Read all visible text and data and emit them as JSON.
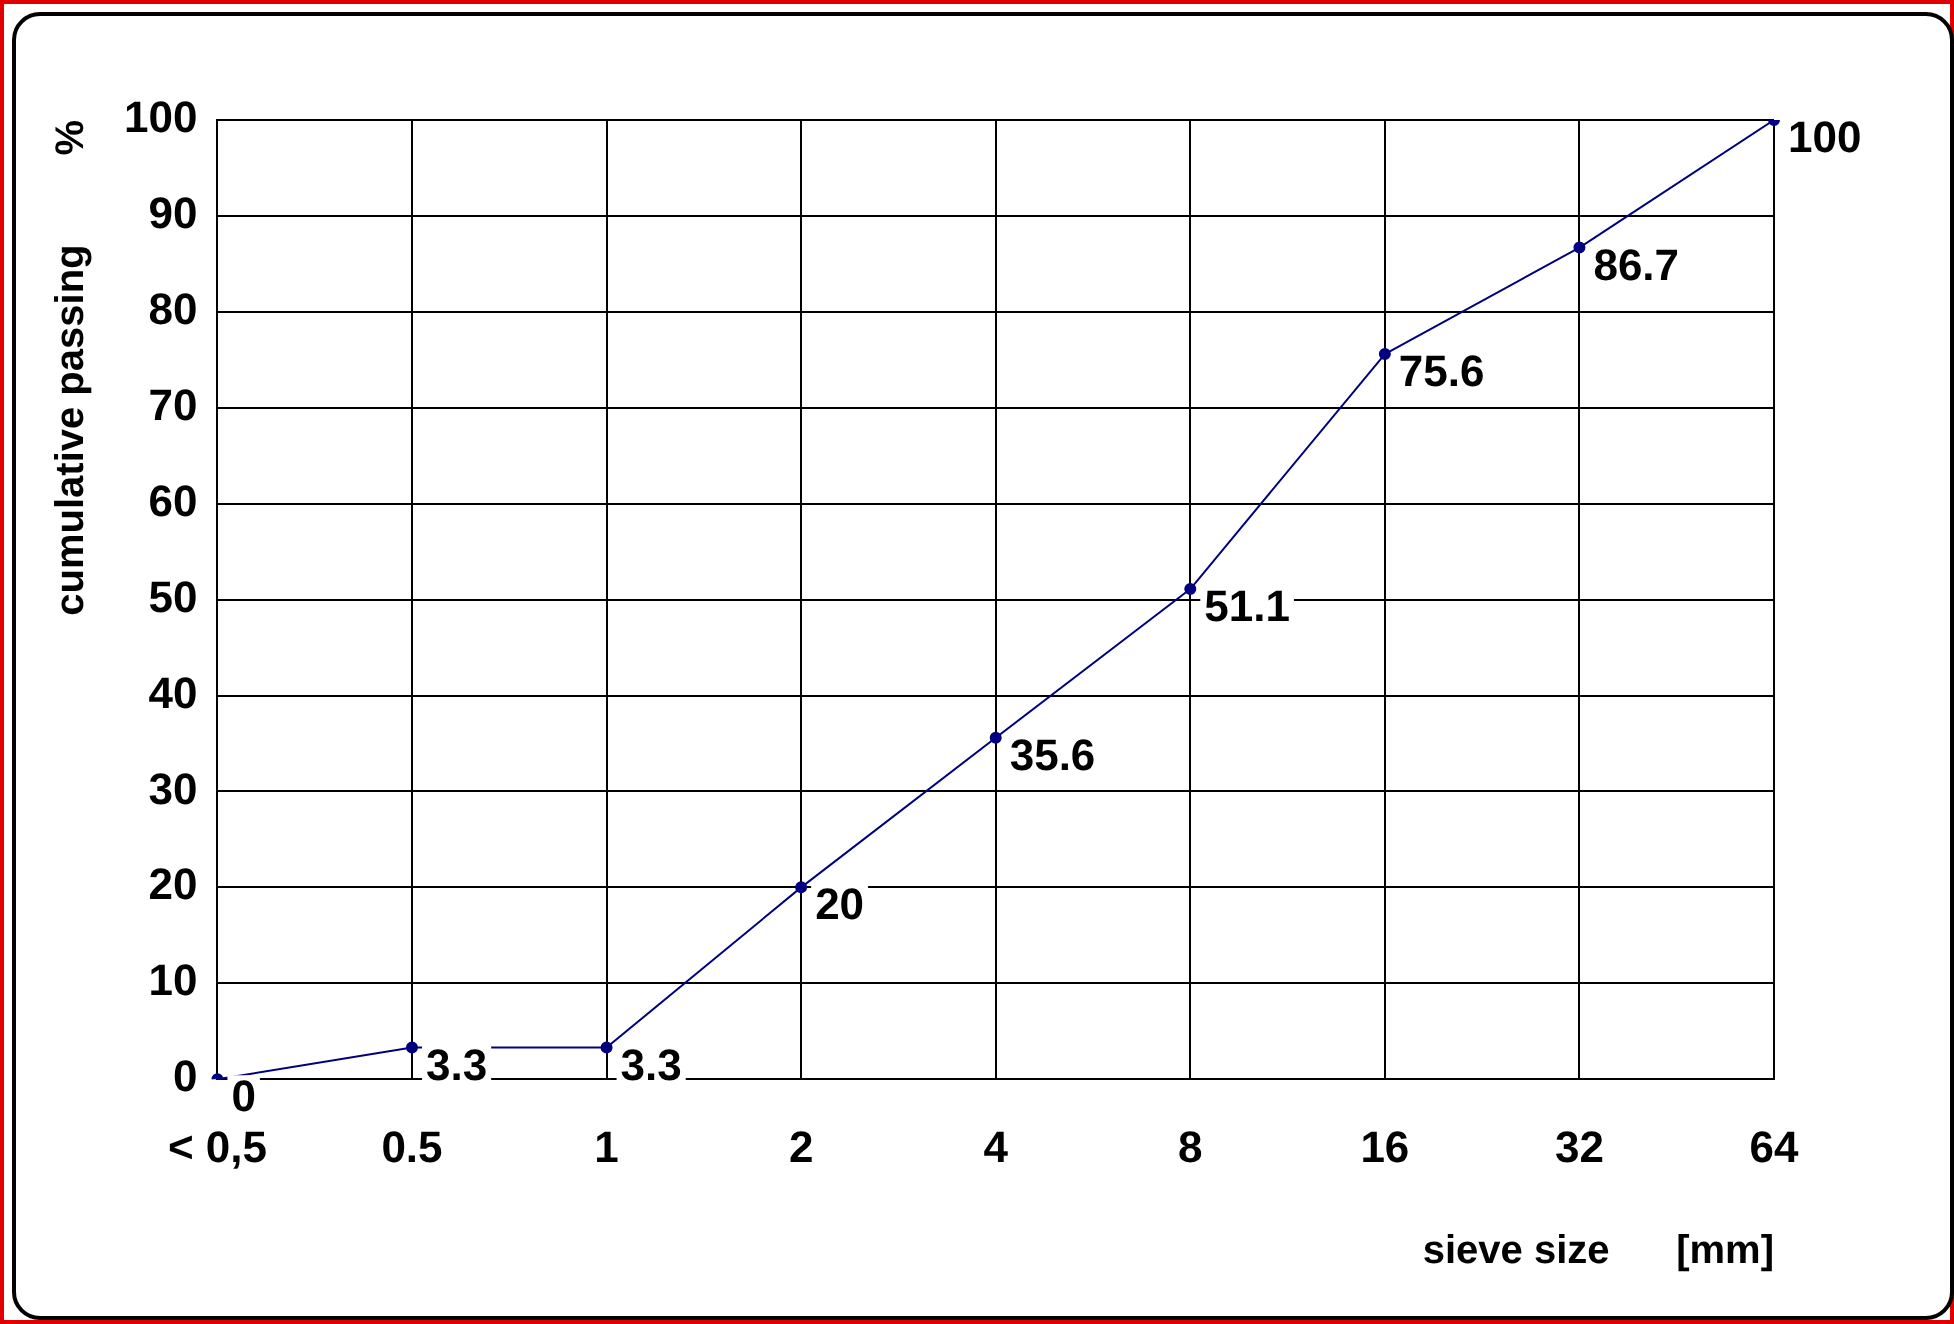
{
  "chart_data": {
    "type": "line",
    "xlabel": "sieve size      [mm]",
    "ylabel": "cumulative passing        %",
    "categories": [
      "< 0,5",
      "0.5",
      "1",
      "2",
      "4",
      "8",
      "16",
      "32",
      "64"
    ],
    "series": [
      {
        "color": "#000080",
        "values": [
          0,
          3.3,
          3.3,
          20,
          35.6,
          51.1,
          75.6,
          86.7,
          100
        ]
      }
    ],
    "ylim": [
      0,
      100
    ],
    "yticks": [
      0,
      10,
      20,
      30,
      40,
      50,
      60,
      70,
      80,
      90,
      100
    ],
    "grid": true,
    "legend": false,
    "marker": "circle",
    "line_style": "solid",
    "data_labels": true
  }
}
